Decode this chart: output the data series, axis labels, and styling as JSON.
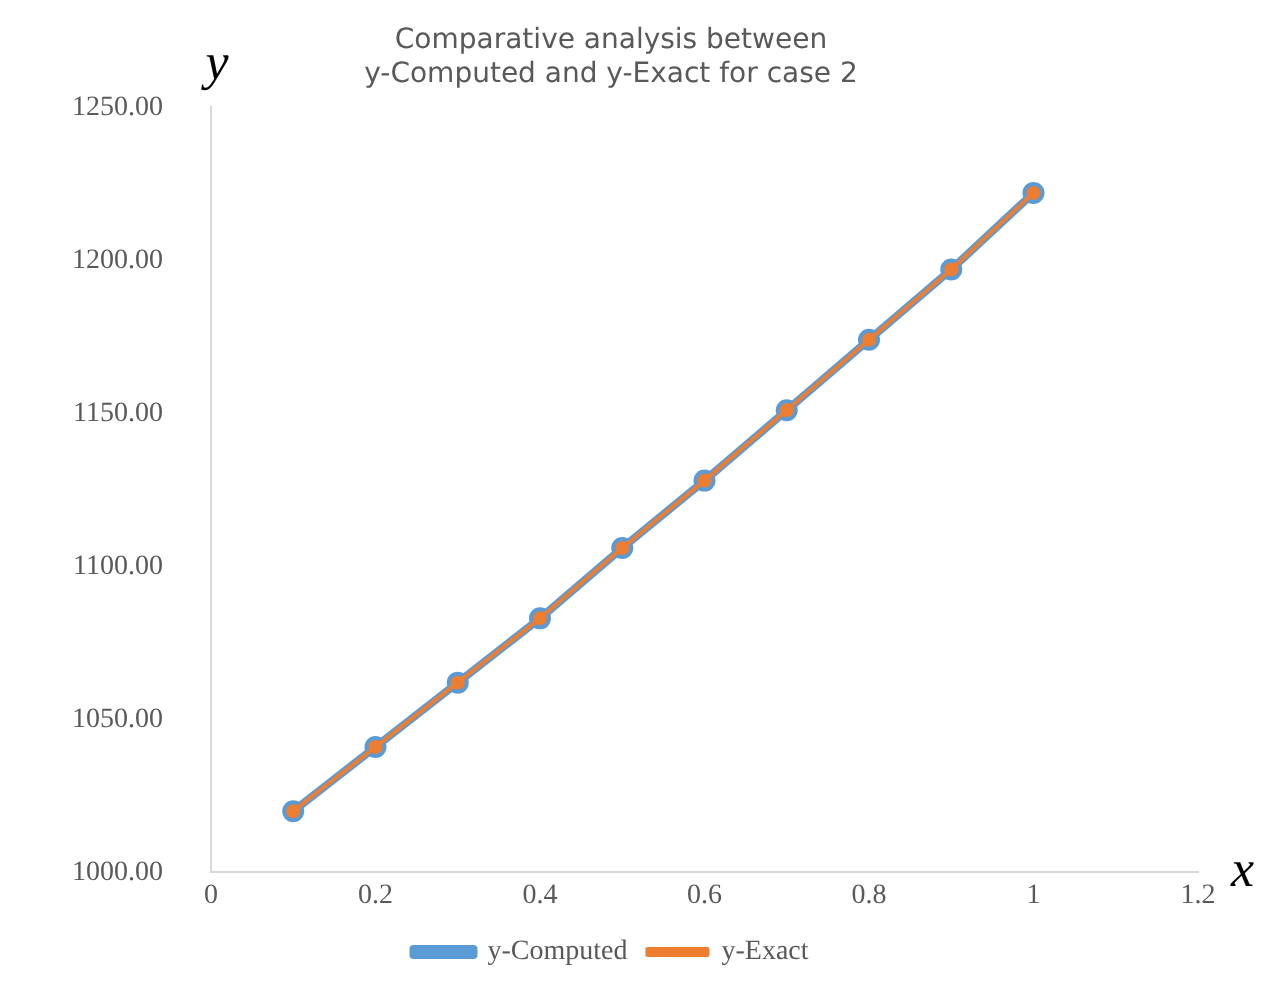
{
  "chart_data": {
    "type": "line",
    "title": "Comparative analysis between\ny-Computed and y-Exact for case 2",
    "xlabel": "x",
    "ylabel": "y",
    "x": [
      0.1,
      0.2,
      0.3,
      0.4,
      0.5,
      0.6,
      0.7,
      0.8,
      0.9,
      1.0
    ],
    "series": [
      {
        "name": "y-Computed",
        "color": "#5b9bd5",
        "values": [
          1020,
          1041,
          1062,
          1083,
          1106,
          1128,
          1151,
          1174,
          1197,
          1222
        ]
      },
      {
        "name": "y-Exact",
        "color": "#ed7d31",
        "values": [
          1020,
          1041,
          1062,
          1083,
          1106,
          1128,
          1151,
          1174,
          1197,
          1222
        ]
      }
    ],
    "xlim": [
      0,
      1.2
    ],
    "xticks": [
      0,
      0.2,
      0.4,
      0.6,
      0.8,
      1,
      1.2
    ],
    "ylim": [
      1000,
      1250
    ],
    "yticks": [
      {
        "value": 1000,
        "label": "1000.00"
      },
      {
        "value": 1050,
        "label": "1050.00"
      },
      {
        "value": 1100,
        "label": "1100.00"
      },
      {
        "value": 1150,
        "label": "1150.00"
      },
      {
        "value": 1200,
        "label": "1200.00"
      },
      {
        "value": 1250,
        "label": "1250.00"
      }
    ],
    "grid": false,
    "legend": "bottom",
    "marker": "circle",
    "line_style": "solid"
  }
}
